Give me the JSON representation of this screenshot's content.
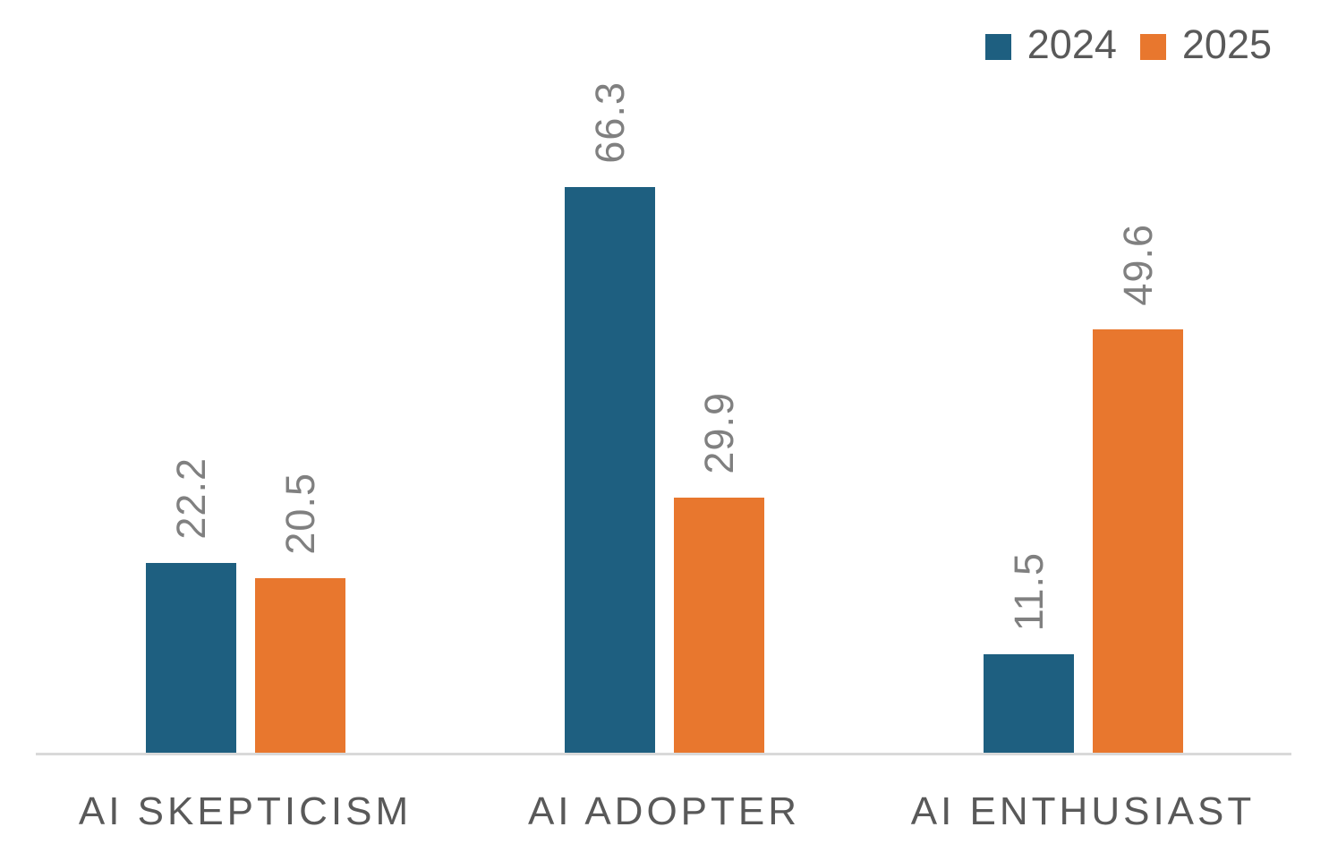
{
  "chart_data": {
    "type": "bar",
    "categories": [
      "AI SKEPTICISM",
      "AI ADOPTER",
      "AI ENTHUSIAST"
    ],
    "series": [
      {
        "name": "2024",
        "color": "#1E5F80",
        "values": [
          22.2,
          66.3,
          11.5
        ]
      },
      {
        "name": "2025",
        "color": "#E8772E",
        "values": [
          20.5,
          29.9,
          49.6
        ]
      }
    ],
    "title": "",
    "xlabel": "",
    "ylabel": "",
    "ylim": [
      0,
      80
    ],
    "grid": false,
    "legend_position": "top-right",
    "data_label_rotation": "90-ccw-bottom-to-top",
    "data_label_color": "#808080",
    "category_label_color": "#595959",
    "legend_text_color": "#595959",
    "axis_line_color": "#D9D9D9",
    "background": "#FFFFFF"
  }
}
